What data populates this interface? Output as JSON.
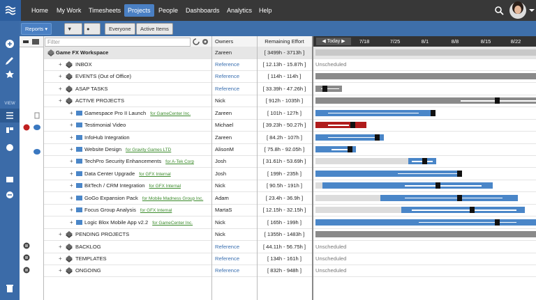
{
  "nav": {
    "items": [
      "Home",
      "My Work",
      "Timesheets",
      "Projects",
      "People",
      "Dashboards",
      "Analytics",
      "Help"
    ]
  },
  "toolbar": {
    "reports": "Reports",
    "buttons": [
      "Everyone",
      "Active Items"
    ]
  },
  "sidebar": {
    "view_label": "VIEW"
  },
  "grid": {
    "filter_placeholder": "Filter",
    "columns": [
      "Owners",
      "Remaining Effort"
    ]
  },
  "gantt": {
    "today": "Today",
    "dates": [
      "7/18",
      "7/25",
      "8/1",
      "8/8",
      "8/15",
      "8/22"
    ]
  },
  "rows": [
    {
      "name": "Game FX Workspace",
      "owner": "Zareen",
      "effort": "[ 3499h - 3713h ]"
    },
    {
      "name": "INBOX",
      "owner": "Reference",
      "effort": "[ 12.13h - 15.87h ]",
      "status": "Unscheduled"
    },
    {
      "name": "EVENTS (Out of Office)",
      "owner": "Reference",
      "effort": "[ 114h - 114h ]"
    },
    {
      "name": "ASAP TASKS",
      "owner": "Reference",
      "effort": "[ 33.39h - 47.26h ]"
    },
    {
      "name": "ACTIVE PROJECTS",
      "owner": "Nick",
      "effort": "[ 912h - 1035h ]"
    },
    {
      "name": "Gamespace Pro II Launch",
      "for": "for GameCenter Inc.",
      "owner": "Zareen",
      "effort": "[ 101h - 127h ]"
    },
    {
      "name": "Testimonial Video",
      "owner": "Michael",
      "effort": "[ 39.23h - 50.27h ]"
    },
    {
      "name": "InfoHub Integration",
      "owner": "Zareen",
      "effort": "[ 84.2h - 107h ]"
    },
    {
      "name": "Website Design",
      "for": "for Gravity Games LTD",
      "owner": "AlisonM",
      "effort": "[ 75.8h - 92.05h ]"
    },
    {
      "name": "TechPro Security Enhancements",
      "for": "for A-Tek Corp",
      "owner": "Josh",
      "effort": "[ 31.61h - 53.69h ]"
    },
    {
      "name": "Data Center Upgrade",
      "for": "for GFX Internal",
      "owner": "Josh",
      "effort": "[ 199h - 235h ]"
    },
    {
      "name": "BitTech / CRM Integration",
      "for": "for GFX Internal",
      "owner": "Nick",
      "effort": "[ 90.5h - 191h ]"
    },
    {
      "name": "GoGo Expansion Pack",
      "for": "for Mobile Madness Group Inc.",
      "owner": "Adam",
      "effort": "[ 23.4h - 36.9h ]"
    },
    {
      "name": "Focus Group Analysis",
      "for": "for GFX Internal",
      "owner": "MartaS",
      "effort": "[ 12.15h - 32.15h ]"
    },
    {
      "name": "Logic Blox Mobile App v2.2",
      "for": "for GameCenter Inc.",
      "owner": "Nick",
      "effort": "[ 165h - 199h ]"
    },
    {
      "name": "PENDING PROJECTS",
      "owner": "Nick",
      "effort": "[ 1355h - 1483h ]"
    },
    {
      "name": "BACKLOG",
      "owner": "Reference",
      "effort": "[ 44.11h - 56.75h ]",
      "status": "Unscheduled"
    },
    {
      "name": "TEMPLATES",
      "owner": "Reference",
      "effort": "[ 134h - 161h ]",
      "status": "Unscheduled"
    },
    {
      "name": "ONGOING",
      "owner": "Reference",
      "effort": "[ 832h - 948h ]",
      "status": "Unscheduled"
    }
  ]
}
